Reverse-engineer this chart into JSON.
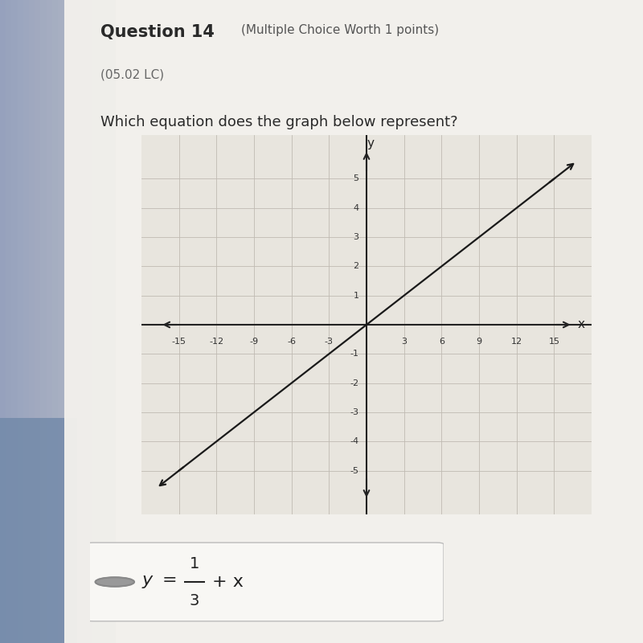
{
  "bg_page_color": "#f2f0ec",
  "bg_left_color": "#c8cdd8",
  "grid_bg": "#e8e5de",
  "grid_color": "#c0bbb2",
  "x_ticks": [
    -15,
    -12,
    -9,
    -6,
    -3,
    3,
    6,
    9,
    12,
    15
  ],
  "y_ticks_pos": [
    1,
    2,
    3,
    4,
    5
  ],
  "y_ticks_neg": [
    -1,
    -2,
    -3,
    -4,
    -5
  ],
  "xlim": [
    -18,
    18
  ],
  "ylim": [
    -6.5,
    6.5
  ],
  "slope": 0.3333333333333333,
  "intercept": 0,
  "line_color": "#1a1a1a",
  "line_width": 1.6,
  "axis_color": "#222222",
  "tick_color": "#333333",
  "title_bold": "Question 14",
  "title_normal": "(Multiple Choice Worth 1 points)",
  "subtitle": "(05.02 LC)",
  "question": "Which equation does the graph below represent?",
  "answer_box_color": "#f8f7f4",
  "answer_box_edge": "#bbbbbb"
}
